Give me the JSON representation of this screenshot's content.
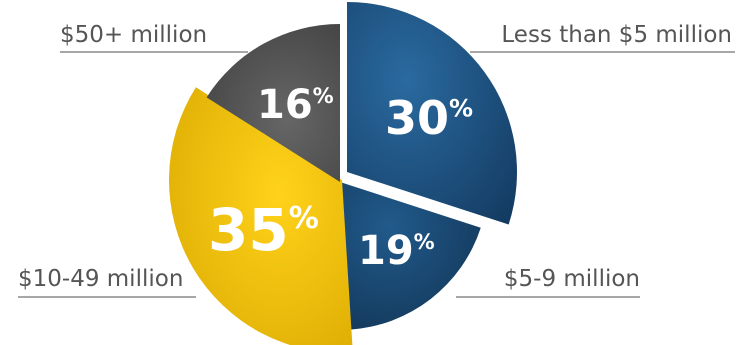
{
  "chart_data": {
    "type": "pie",
    "title": "",
    "categories": [
      "Less than $5 million",
      "$5-9 million",
      "$10-49 million",
      "$50+ million"
    ],
    "values": [
      30,
      19,
      35,
      16
    ],
    "value_labels": [
      "30",
      "19",
      "35",
      "16"
    ],
    "percent_symbol": "%",
    "colors": [
      "#1d4f7e",
      "#19456d",
      "#f5c400",
      "#555555"
    ],
    "legend": "none"
  }
}
